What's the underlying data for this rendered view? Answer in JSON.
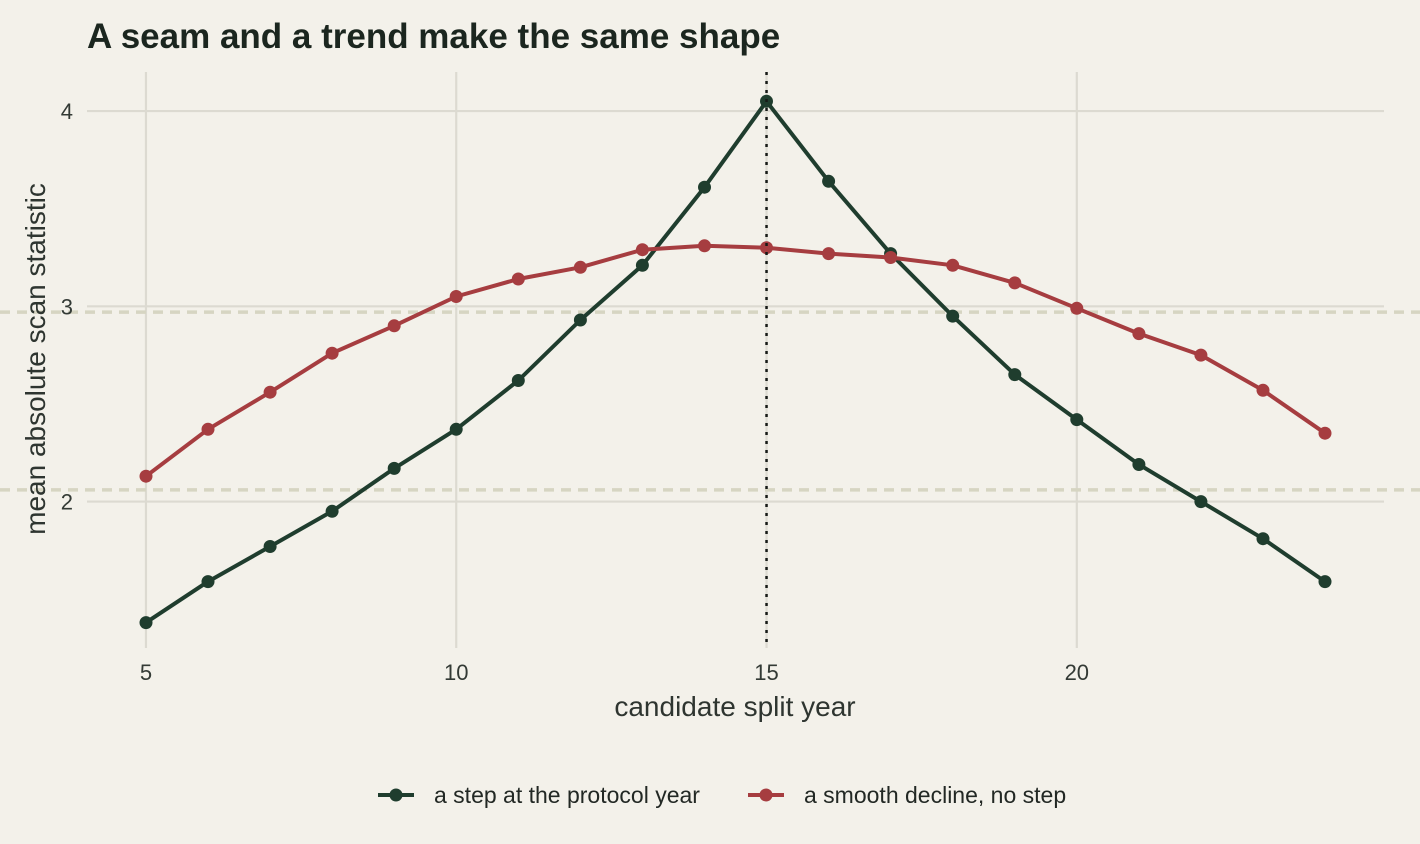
{
  "chart_data": {
    "type": "line",
    "title": "A seam and a trend make the same shape",
    "xlabel": "candidate split year",
    "ylabel": "mean absolute scan statistic",
    "xlim": [
      4.05,
      24.95
    ],
    "ylim": [
      1.25,
      4.2
    ],
    "x_ticks": [
      5,
      10,
      15,
      20
    ],
    "y_ticks": [
      2,
      3,
      4
    ],
    "grid": true,
    "legend_position": "bottom",
    "reference_lines": {
      "horizontal": [
        2.06,
        2.97
      ],
      "vertical": 15
    },
    "x": [
      5,
      6,
      7,
      8,
      9,
      10,
      11,
      12,
      13,
      14,
      15,
      16,
      17,
      18,
      19,
      20,
      21,
      22,
      23,
      24
    ],
    "series": [
      {
        "name": "a step at the protocol year",
        "color": "#1f3d2e",
        "values": [
          1.38,
          1.59,
          1.77,
          1.95,
          2.17,
          2.37,
          2.62,
          2.93,
          3.21,
          3.61,
          4.05,
          3.64,
          3.27,
          2.95,
          2.65,
          2.42,
          2.19,
          2.0,
          1.81,
          1.59
        ]
      },
      {
        "name": "a smooth decline, no step",
        "color": "#a63d40",
        "values": [
          2.13,
          2.37,
          2.56,
          2.76,
          2.9,
          3.05,
          3.14,
          3.2,
          3.29,
          3.31,
          3.3,
          3.27,
          3.25,
          3.21,
          3.12,
          2.99,
          2.86,
          2.75,
          2.57,
          2.35
        ]
      }
    ]
  }
}
